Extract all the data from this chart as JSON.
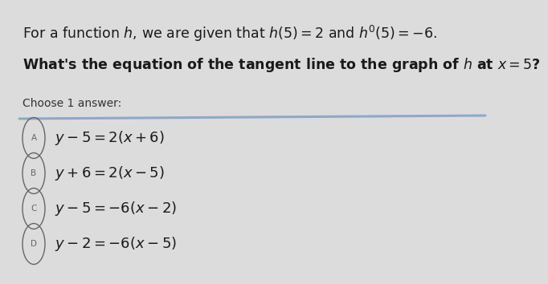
{
  "bg_color": "#dcdcdc",
  "card_color": "#e6e6e6",
  "line_color": "#8fa8c8",
  "title_parts": [
    {
      "text": "For a function ",
      "style": "normal"
    },
    {
      "text": "h",
      "style": "italic"
    },
    {
      "text": ", we are given that ",
      "style": "normal"
    },
    {
      "text": "h(5) = 2",
      "style": "math"
    },
    {
      "text": " and ",
      "style": "normal"
    },
    {
      "text": "h′(5) = −6.",
      "style": "math"
    }
  ],
  "title_plain": "For a function $h$, we are given that $h(5) = 2$ and $h'(5) = -6.$",
  "question_plain": "What's the equation of the tangent line to the graph of $h$ at $x = 5$?",
  "choose_text": "Choose 1 answer:",
  "options": [
    {
      "label": "A",
      "formula": "$y - 5 = 2(x + 6)$"
    },
    {
      "label": "B",
      "formula": "$y + 6 = 2(x - 5)$"
    },
    {
      "label": "C",
      "formula": "$y - 5 = -6(x - 2)$"
    },
    {
      "label": "D",
      "formula": "$y - 2 = -6(x - 5)$"
    }
  ],
  "title_fontsize": 12.5,
  "question_fontsize": 12.5,
  "choose_fontsize": 10,
  "option_fontsize": 13,
  "label_fontsize": 7.5,
  "title_color": "#1a1a1a",
  "question_color": "#1a1a1a",
  "choose_color": "#333333",
  "option_color": "#1a1a1a",
  "circle_color": "#666666"
}
